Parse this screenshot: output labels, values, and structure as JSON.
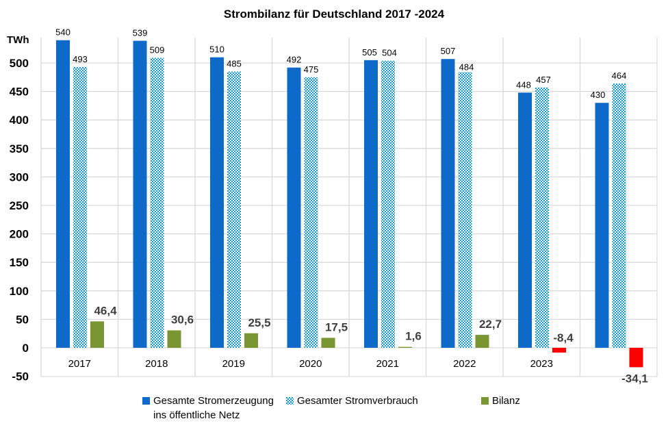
{
  "chart_data": {
    "type": "bar",
    "title": "Strombilanz  für Deutschland  2017 -2024",
    "ylabel": "TWh",
    "xlabel": "",
    "ylim": [
      -50,
      550
    ],
    "yticks": [
      -50,
      0,
      50,
      100,
      150,
      200,
      250,
      300,
      350,
      400,
      450,
      500
    ],
    "grid": true,
    "legend_position": "bottom",
    "categories": [
      "2017",
      "2018",
      "2019",
      "2020",
      "2021",
      "2022",
      "2023",
      ""
    ],
    "series": [
      {
        "name": "Gesamte Stromerzeugung\nins öffentliche Netz",
        "color": "#0e6ac8",
        "pattern": "solid",
        "values": [
          540,
          539,
          510,
          492,
          505,
          507,
          448,
          430
        ],
        "labels": [
          "540",
          "539",
          "510",
          "492",
          "505",
          "507",
          "448",
          "430"
        ]
      },
      {
        "name": "Gesamter Stromverbrauch",
        "color": "#0e9ad0",
        "pattern": "checkered",
        "values": [
          493,
          509,
          485,
          475,
          504,
          484,
          457,
          464
        ],
        "labels": [
          "493",
          "509",
          "485",
          "475",
          "504",
          "484",
          "457",
          "464"
        ]
      },
      {
        "name": "Bilanz",
        "color": "#7a9632",
        "negative_color": "#ff0000",
        "pattern": "solid",
        "values": [
          46.4,
          30.6,
          25.5,
          17.5,
          1.6,
          22.7,
          -8.4,
          -34.1
        ],
        "labels": [
          "46,4",
          "30,6",
          "25,5",
          "17,5",
          "1,6",
          "22,7",
          "-8,4",
          "-34,1"
        ]
      }
    ]
  }
}
